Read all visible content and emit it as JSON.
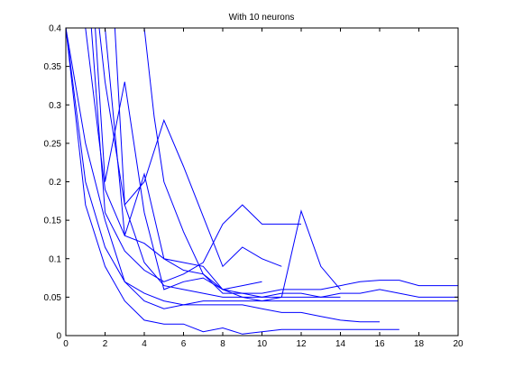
{
  "chart_data": {
    "type": "line",
    "title": "With 10 neurons",
    "xlabel": "",
    "ylabel": "",
    "xlim": [
      0,
      20
    ],
    "ylim": [
      0,
      0.4
    ],
    "xticks": [
      0,
      2,
      4,
      6,
      8,
      10,
      12,
      14,
      16,
      18,
      20
    ],
    "yticks": [
      0,
      0.05,
      0.1,
      0.15,
      0.2,
      0.25,
      0.3,
      0.35,
      0.4
    ],
    "xtick_labels": [
      "0",
      "2",
      "4",
      "6",
      "8",
      "10",
      "12",
      "14",
      "16",
      "18",
      "20"
    ],
    "ytick_labels": [
      "0",
      "0.05",
      "0.1",
      "0.15",
      "0.2",
      "0.25",
      "0.3",
      "0.35",
      "0.4"
    ],
    "grid": false,
    "line_color": "#0000ff",
    "series": [
      {
        "x": [
          0,
          1,
          2,
          3,
          4,
          5,
          6,
          7,
          8,
          9,
          10,
          11,
          12,
          13,
          14,
          15,
          16,
          17,
          18,
          19,
          20
        ],
        "y": [
          0.4,
          0.2,
          0.115,
          0.07,
          0.045,
          0.035,
          0.04,
          0.045,
          0.045,
          0.045,
          0.045,
          0.045,
          0.045,
          0.045,
          0.045,
          0.045,
          0.045,
          0.045,
          0.045,
          0.045,
          0.045
        ]
      },
      {
        "x": [
          0,
          1,
          2,
          3,
          4,
          5,
          6,
          7,
          8,
          9,
          10,
          11,
          12,
          13,
          14,
          15,
          16,
          17
        ],
        "y": [
          0.4,
          0.17,
          0.09,
          0.045,
          0.02,
          0.015,
          0.015,
          0.005,
          0.01,
          0.002,
          0.005,
          0.008,
          0.008,
          0.008,
          0.008,
          0.008,
          0.008,
          0.008
        ]
      },
      {
        "x": [
          0,
          1,
          2,
          3,
          4,
          5,
          6,
          7,
          8,
          9,
          10,
          11,
          12,
          13,
          14,
          15,
          16
        ],
        "y": [
          0.4,
          0.25,
          0.15,
          0.07,
          0.055,
          0.045,
          0.04,
          0.04,
          0.04,
          0.04,
          0.035,
          0.03,
          0.03,
          0.025,
          0.02,
          0.018,
          0.018
        ]
      },
      {
        "x": [
          1,
          2,
          3,
          4,
          5,
          6,
          7,
          8,
          9,
          10,
          11,
          12,
          13,
          14,
          15,
          16,
          17,
          18,
          19,
          20
        ],
        "y": [
          0.4,
          0.19,
          0.13,
          0.12,
          0.1,
          0.085,
          0.08,
          0.055,
          0.055,
          0.055,
          0.06,
          0.06,
          0.06,
          0.065,
          0.07,
          0.072,
          0.072,
          0.065,
          0.065,
          0.065
        ]
      },
      {
        "x": [
          1.3,
          2,
          3,
          4,
          5,
          6,
          7,
          8,
          9,
          10,
          11,
          12
        ],
        "y": [
          0.4,
          0.16,
          0.11,
          0.085,
          0.07,
          0.08,
          0.095,
          0.145,
          0.17,
          0.145,
          0.145,
          0.145
        ]
      },
      {
        "x": [
          1.5,
          2,
          3,
          4,
          5,
          6,
          7,
          8,
          9,
          10,
          11,
          12,
          13,
          14
        ],
        "y": [
          0.4,
          0.2,
          0.33,
          0.16,
          0.06,
          0.07,
          0.075,
          0.06,
          0.055,
          0.05,
          0.05,
          0.05,
          0.05,
          0.05
        ]
      },
      {
        "x": [
          1.7,
          2,
          3,
          4,
          5,
          6,
          7,
          8,
          9,
          10,
          11,
          12,
          13,
          14,
          15,
          16,
          17,
          18,
          19,
          20
        ],
        "y": [
          0.4,
          0.33,
          0.17,
          0.095,
          0.065,
          0.06,
          0.055,
          0.05,
          0.05,
          0.05,
          0.055,
          0.055,
          0.05,
          0.055,
          0.055,
          0.06,
          0.055,
          0.05,
          0.05,
          0.05
        ]
      },
      {
        "x": [
          2,
          3,
          4,
          5,
          6,
          7,
          8,
          9,
          10
        ],
        "y": [
          0.4,
          0.13,
          0.21,
          0.1,
          0.095,
          0.09,
          0.06,
          0.065,
          0.07
        ]
      },
      {
        "x": [
          2.5,
          3,
          4,
          5,
          6,
          7,
          8,
          9,
          10,
          11
        ],
        "y": [
          0.4,
          0.17,
          0.2,
          0.28,
          0.22,
          0.155,
          0.09,
          0.115,
          0.1,
          0.09
        ]
      },
      {
        "x": [
          4,
          4.5,
          5,
          6,
          7,
          8,
          9,
          10,
          11,
          12,
          13,
          14
        ],
        "y": [
          0.4,
          0.285,
          0.2,
          0.135,
          0.08,
          0.06,
          0.05,
          0.045,
          0.05,
          0.162,
          0.09,
          0.06
        ]
      }
    ]
  }
}
